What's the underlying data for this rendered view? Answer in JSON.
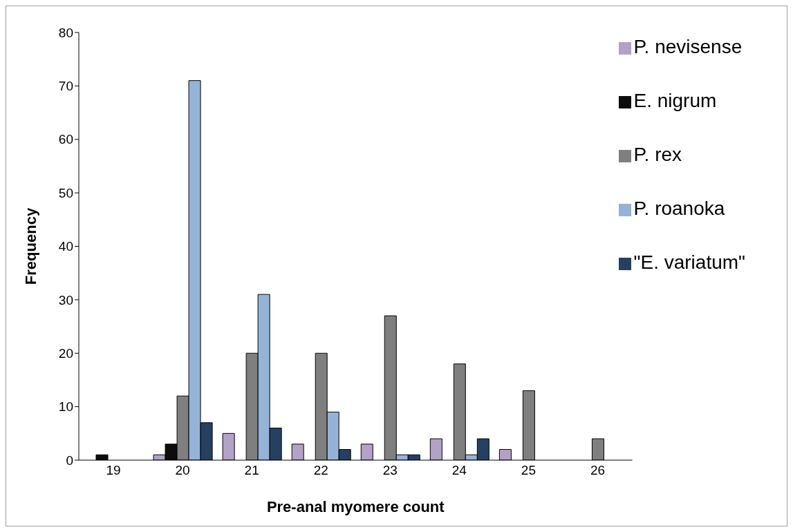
{
  "chart_data": {
    "type": "bar",
    "xlabel": "Pre-anal myomere count",
    "ylabel": "Frequency",
    "categories": [
      "19",
      "20",
      "21",
      "22",
      "23",
      "24",
      "25",
      "26"
    ],
    "series": [
      {
        "name": "P. nevisense",
        "color": "#b3a2c7",
        "values": [
          0,
          1,
          5,
          3,
          3,
          4,
          2,
          0
        ]
      },
      {
        "name": "E. nigrum",
        "color": "#0d0d0d",
        "values": [
          1,
          3,
          0,
          0,
          0,
          0,
          0,
          0
        ]
      },
      {
        "name": "P. rex",
        "color": "#7f7f7f",
        "values": [
          0,
          12,
          20,
          20,
          27,
          18,
          13,
          4
        ]
      },
      {
        "name": "P. roanoka",
        "color": "#95b3d7",
        "values": [
          0,
          71,
          31,
          9,
          1,
          1,
          0,
          0
        ]
      },
      {
        "name": "\"E. variatum\"",
        "color": "#254061",
        "values": [
          0,
          7,
          6,
          2,
          1,
          4,
          0,
          0
        ]
      }
    ],
    "ylim": [
      0,
      80
    ],
    "yticks": [
      0,
      10,
      20,
      30,
      40,
      50,
      60,
      70,
      80
    ],
    "grid": false,
    "legend": "top right"
  }
}
